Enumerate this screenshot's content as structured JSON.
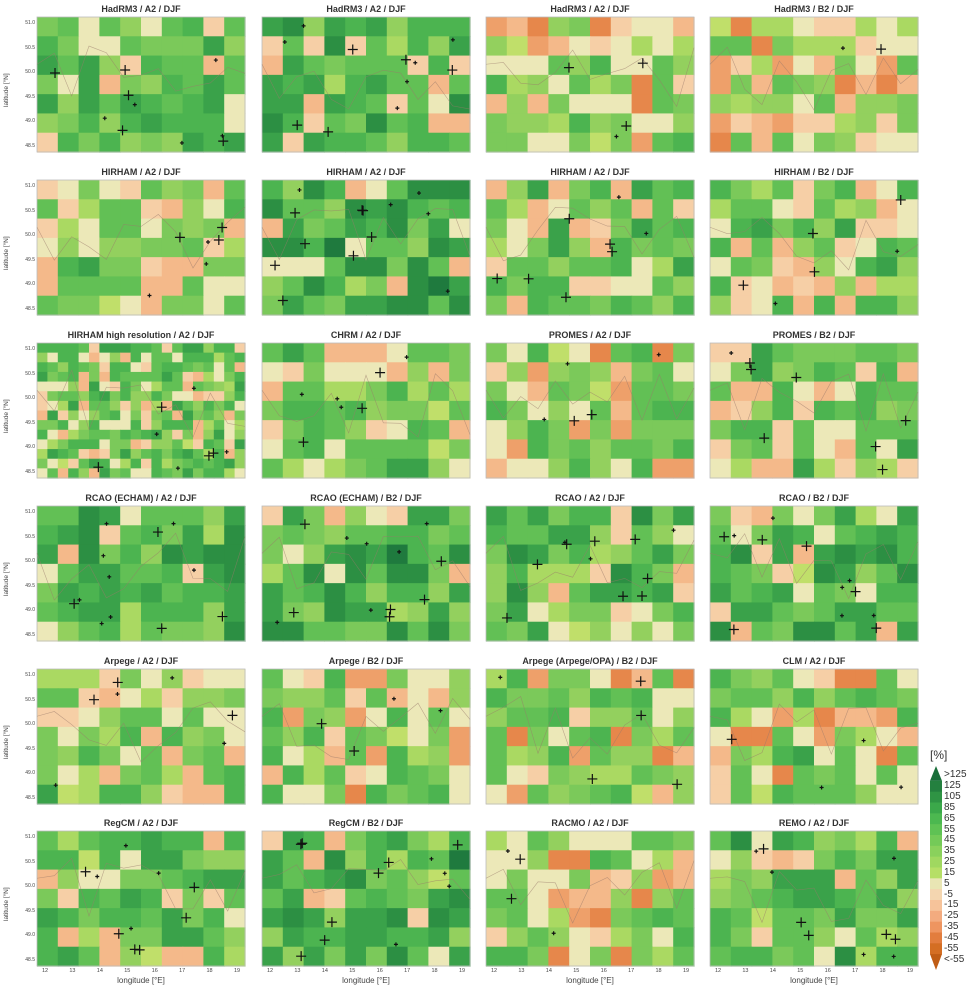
{
  "chart_data": {
    "type": "heatmap",
    "panels": [
      {
        "title": "HadRM3 / A2 / DJF"
      },
      {
        "title": "HadRM3 / A2 / DJF"
      },
      {
        "title": "HadRM3 / A2 / DJF"
      },
      {
        "title": "HadRM3 / B2 / DJF"
      },
      {
        "title": "HIRHAM / A2 / DJF"
      },
      {
        "title": "HIRHAM / A2 / DJF"
      },
      {
        "title": "HIRHAM / A2 / DJF"
      },
      {
        "title": "HIRHAM / B2 / DJF"
      },
      {
        "title": "HIRHAM high resolution / A2 / DJF"
      },
      {
        "title": "CHRM / A2 / DJF"
      },
      {
        "title": "PROMES / A2 / DJF"
      },
      {
        "title": "PROMES / B2 / DJF"
      },
      {
        "title": "RCAO (ECHAM) / A2 / DJF"
      },
      {
        "title": "RCAO (ECHAM) / B2 / DJF"
      },
      {
        "title": "RCAO / A2 / DJF"
      },
      {
        "title": "RCAO / B2 / DJF"
      },
      {
        "title": "Arpege / A2 / DJF"
      },
      {
        "title": "Arpege / B2 / DJF"
      },
      {
        "title": "Arpege (Arpege/OPA) / B2 / DJF"
      },
      {
        "title": "CLM / A2 / DJF"
      },
      {
        "title": "RegCM / A2 / DJF"
      },
      {
        "title": "RegCM / B2 / DJF"
      },
      {
        "title": "RACMO / A2 / DJF"
      },
      {
        "title": "REMO / A2 / DJF"
      }
    ],
    "ylabel": "latitude [°N]",
    "xlabel": "longitude [°E]",
    "yticks": [
      "51.0",
      "50.5",
      "50.0",
      "49.5",
      "49.0",
      "48.5"
    ],
    "xticks": [
      "12",
      "13",
      "14",
      "15",
      "16",
      "17",
      "18",
      "19"
    ],
    "colorbar": {
      "title": "[%]",
      "labels": [
        ">125",
        "125",
        "105",
        "85",
        "65",
        "55",
        "45",
        "35",
        "25",
        "15",
        "5",
        "-5",
        "-15",
        "-25",
        "-35",
        "-45",
        "-55",
        "<-55"
      ],
      "colors": [
        "#1a6f3a",
        "#24803f",
        "#2f9444",
        "#3ba84a",
        "#4cb850",
        "#5fc254",
        "#74ca58",
        "#8ad15c",
        "#a0d860",
        "#b6df66",
        "#e9e6b4",
        "#f4d6b0",
        "#f6c39a",
        "#f3ab7f",
        "#ee9560",
        "#e27d3e",
        "#d46e23",
        "#c05d15"
      ]
    }
  }
}
